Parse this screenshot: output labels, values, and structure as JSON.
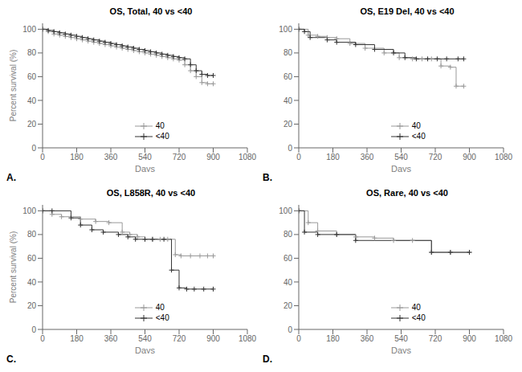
{
  "chart_data": [
    {
      "type": "line",
      "title": "OS, Total, 40 vs <40",
      "annotation": "A.",
      "xlabel": "Days",
      "ylabel": "Percent survival (%)",
      "xlim": [
        0,
        1080
      ],
      "ylim": [
        0,
        105
      ],
      "xticks": [
        0,
        180,
        360,
        540,
        720,
        900,
        1080
      ],
      "yticks": [
        0,
        20,
        40,
        60,
        80,
        100
      ],
      "line_style": "step",
      "marker": "+",
      "legend": "lower center",
      "grid": false,
      "series": [
        {
          "name": "40",
          "color": "#999999",
          "x": [
            0,
            30,
            60,
            90,
            120,
            150,
            180,
            210,
            240,
            270,
            300,
            330,
            360,
            390,
            420,
            450,
            480,
            510,
            540,
            570,
            600,
            630,
            660,
            690,
            720,
            750,
            780,
            810,
            840,
            870,
            900
          ],
          "values": [
            100,
            98,
            96,
            95,
            94,
            93,
            92,
            91,
            90,
            89,
            88,
            87,
            86,
            85,
            84,
            83,
            82,
            81,
            80,
            79,
            78,
            77,
            76,
            75,
            74,
            70,
            65,
            60,
            55,
            54,
            54
          ]
        },
        {
          "name": "<40",
          "color": "#333333",
          "x": [
            0,
            30,
            60,
            90,
            120,
            150,
            180,
            210,
            240,
            270,
            300,
            330,
            360,
            390,
            420,
            450,
            480,
            510,
            540,
            570,
            600,
            630,
            660,
            690,
            720,
            750,
            780,
            810,
            840,
            870,
            900
          ],
          "values": [
            100,
            99,
            98,
            97,
            96,
            95,
            94,
            93,
            92,
            91,
            90,
            89,
            88,
            87,
            86,
            85,
            84,
            83,
            82,
            81,
            80,
            79,
            78,
            77,
            76,
            75,
            70,
            65,
            62,
            61,
            61
          ]
        }
      ]
    },
    {
      "type": "line",
      "title": "OS, E19 Del, 40 vs <40",
      "annotation": "B.",
      "xlabel": "Days",
      "xlim": [
        0,
        1080
      ],
      "ylim": [
        0,
        105
      ],
      "xticks": [
        0,
        180,
        360,
        540,
        720,
        900,
        1080
      ],
      "yticks": [
        0,
        20,
        40,
        60,
        80,
        100
      ],
      "line_style": "step",
      "marker": "+",
      "legend": "lower center",
      "grid": false,
      "series": [
        {
          "name": "40",
          "color": "#999999",
          "x": [
            0,
            50,
            100,
            150,
            200,
            270,
            350,
            450,
            530,
            600,
            650,
            700,
            750,
            800,
            830,
            870
          ],
          "values": [
            100,
            95,
            94,
            93,
            92,
            88,
            84,
            80,
            76,
            75,
            75,
            75,
            69,
            68,
            52,
            52
          ]
        },
        {
          "name": "<40",
          "color": "#333333",
          "x": [
            0,
            30,
            60,
            150,
            200,
            300,
            400,
            500,
            560,
            620,
            680,
            730,
            780,
            840,
            870
          ],
          "values": [
            100,
            98,
            93,
            91,
            89,
            87,
            83,
            80,
            76,
            75,
            75,
            75,
            75,
            75,
            75
          ]
        }
      ]
    },
    {
      "type": "line",
      "title": "OS, L858R, 40 vs <40",
      "annotation": "C.",
      "xlabel": "Days",
      "ylabel": "Percent survival (%)",
      "xlim": [
        0,
        1080
      ],
      "ylim": [
        0,
        105
      ],
      "xticks": [
        0,
        180,
        360,
        540,
        720,
        900,
        1080
      ],
      "yticks": [
        0,
        20,
        40,
        60,
        80,
        100
      ],
      "line_style": "step",
      "marker": "+",
      "legend": "lower center",
      "grid": false,
      "series": [
        {
          "name": "40",
          "color": "#999999",
          "x": [
            0,
            50,
            100,
            200,
            280,
            350,
            420,
            460,
            500,
            540,
            580,
            620,
            660,
            700,
            730,
            780,
            830,
            870,
            900
          ],
          "values": [
            100,
            97,
            95,
            93,
            91,
            90,
            82,
            80,
            78,
            76,
            76,
            76,
            76,
            63,
            62,
            62,
            62,
            62,
            62
          ]
        },
        {
          "name": "<40",
          "color": "#333333",
          "x": [
            0,
            50,
            150,
            200,
            260,
            320,
            400,
            450,
            490,
            540,
            580,
            640,
            680,
            720,
            760,
            800,
            850,
            900
          ],
          "values": [
            100,
            100,
            94,
            88,
            84,
            82,
            80,
            78,
            76,
            76,
            76,
            76,
            50,
            35,
            34,
            34,
            34,
            34
          ]
        }
      ]
    },
    {
      "type": "line",
      "title": "OS, Rare, 40 vs <40",
      "annotation": "D.",
      "xlabel": "Days",
      "xlim": [
        0,
        1080
      ],
      "ylim": [
        0,
        105
      ],
      "xticks": [
        0,
        180,
        360,
        540,
        720,
        900,
        1080
      ],
      "yticks": [
        0,
        20,
        40,
        60,
        80,
        100
      ],
      "line_style": "step",
      "marker": "+",
      "legend": "lower center",
      "grid": false,
      "series": [
        {
          "name": "40",
          "color": "#999999",
          "x": [
            0,
            50,
            100,
            200,
            300,
            400,
            500,
            600,
            700,
            800,
            900
          ],
          "values": [
            100,
            90,
            83,
            80,
            78,
            77,
            75,
            75,
            65,
            65,
            65
          ]
        },
        {
          "name": "<40",
          "color": "#333333",
          "x": [
            0,
            30,
            100,
            200,
            300,
            700,
            800,
            900
          ],
          "values": [
            100,
            82,
            80,
            80,
            75,
            65,
            65,
            65
          ]
        }
      ]
    }
  ]
}
